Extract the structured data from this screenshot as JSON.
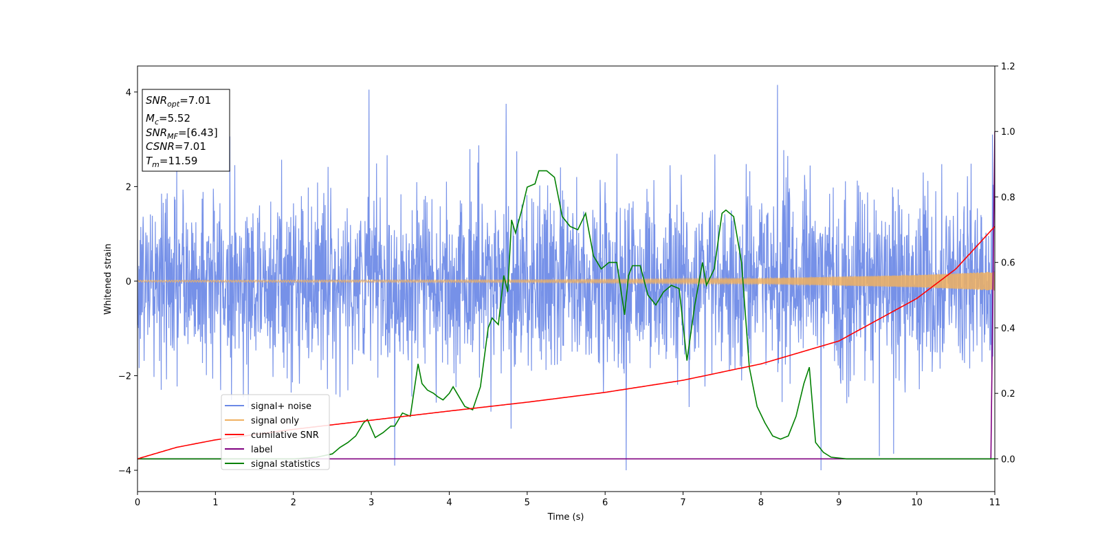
{
  "chart_data": {
    "type": "line",
    "xlabel": "Time (s)",
    "ylabel": "Whitened strain",
    "xlim": [
      0,
      11
    ],
    "ylim_left": [
      -4.45,
      4.55
    ],
    "ylim_right": [
      -0.1,
      1.2
    ],
    "x_ticks": [
      "0",
      "1",
      "2",
      "3",
      "4",
      "5",
      "6",
      "7",
      "8",
      "9",
      "10",
      "11"
    ],
    "y_left_ticks": [
      "−4",
      "−2",
      "0",
      "2",
      "4"
    ],
    "y_left_tick_values": [
      -4,
      -2,
      0,
      2,
      4
    ],
    "y_right_ticks": [
      "0.0",
      "0.2",
      "0.4",
      "0.6",
      "0.8",
      "1.0",
      "1.2"
    ],
    "y_right_tick_values": [
      0.0,
      0.2,
      0.4,
      0.6,
      0.8,
      1.0,
      1.2
    ],
    "grid": false,
    "legend_position": "lower-left",
    "series": [
      {
        "name": "signal+ noise",
        "axis": "left",
        "color": "#6a88e6",
        "noise_std": 0.95,
        "peaks_x": [
          2.97,
          3.3,
          4.73,
          6.27,
          8.21,
          8.77,
          9.52,
          9.7,
          10.97
        ],
        "peaks_y": [
          4.05,
          -3.9,
          3.75,
          -4.0,
          4.15,
          -4.0,
          -3.7,
          -3.65,
          3.1
        ]
      },
      {
        "name": "signal only",
        "axis": "left",
        "color": "#f0b060",
        "amplitude_x": [
          0,
          5,
          8,
          10,
          11
        ],
        "amplitude_y": [
          0.02,
          0.03,
          0.06,
          0.13,
          0.2
        ]
      },
      {
        "name": "cumilative SNR",
        "axis": "right",
        "color": "#ff0000",
        "x": [
          0,
          0.5,
          1,
          2,
          3,
          4,
          5,
          6,
          7,
          8,
          9,
          10,
          10.5,
          11
        ],
        "y": [
          0.0,
          0.035,
          0.058,
          0.09,
          0.118,
          0.146,
          0.173,
          0.203,
          0.24,
          0.29,
          0.36,
          0.49,
          0.58,
          0.71
        ]
      },
      {
        "name": "label",
        "axis": "right",
        "color": "#800080",
        "x": [
          0,
          10.95,
          11.0
        ],
        "y": [
          0.0,
          0.0,
          1.0
        ]
      },
      {
        "name": "signal statistics",
        "axis": "right",
        "color": "#008000",
        "x": [
          0,
          0.5,
          1,
          1.5,
          2,
          2.3,
          2.5,
          2.6,
          2.7,
          2.8,
          2.9,
          2.95,
          3.05,
          3.15,
          3.25,
          3.3,
          3.4,
          3.5,
          3.6,
          3.65,
          3.72,
          3.8,
          3.85,
          3.92,
          4.0,
          4.05,
          4.1,
          4.2,
          4.3,
          4.4,
          4.5,
          4.55,
          4.63,
          4.7,
          4.75,
          4.8,
          4.85,
          4.93,
          5.0,
          5.1,
          5.15,
          5.25,
          5.35,
          5.45,
          5.55,
          5.65,
          5.75,
          5.85,
          5.95,
          6.05,
          6.15,
          6.25,
          6.3,
          6.35,
          6.45,
          6.55,
          6.65,
          6.75,
          6.85,
          6.95,
          7.05,
          7.15,
          7.25,
          7.3,
          7.4,
          7.5,
          7.55,
          7.65,
          7.75,
          7.85,
          7.95,
          8.05,
          8.15,
          8.25,
          8.35,
          8.45,
          8.55,
          8.62,
          8.7,
          8.8,
          8.9,
          9.1,
          9.5,
          10,
          11
        ],
        "y": [
          0.0,
          0.0,
          0.0,
          0.0,
          0.0,
          0.005,
          0.015,
          0.035,
          0.05,
          0.07,
          0.11,
          0.12,
          0.065,
          0.08,
          0.1,
          0.1,
          0.14,
          0.13,
          0.29,
          0.23,
          0.21,
          0.2,
          0.19,
          0.18,
          0.2,
          0.22,
          0.2,
          0.16,
          0.15,
          0.22,
          0.4,
          0.43,
          0.41,
          0.56,
          0.51,
          0.73,
          0.69,
          0.76,
          0.83,
          0.84,
          0.88,
          0.88,
          0.86,
          0.74,
          0.71,
          0.7,
          0.75,
          0.62,
          0.58,
          0.6,
          0.6,
          0.44,
          0.56,
          0.59,
          0.59,
          0.5,
          0.47,
          0.51,
          0.53,
          0.52,
          0.3,
          0.47,
          0.6,
          0.53,
          0.58,
          0.75,
          0.76,
          0.74,
          0.6,
          0.28,
          0.16,
          0.11,
          0.07,
          0.06,
          0.07,
          0.13,
          0.23,
          0.28,
          0.05,
          0.02,
          0.005,
          0.0,
          0.0,
          0.0,
          0.0
        ]
      }
    ],
    "info_box": {
      "snr_opt": {
        "base": "SNR",
        "sub": "opt",
        "value": "=7.01"
      },
      "mc": {
        "base": "M",
        "sub": "c",
        "value": "=5.52"
      },
      "snr_mf": {
        "base": "SNR",
        "sub": "MF",
        "value": "=[6.43]"
      },
      "csnr": {
        "base": "CSNR",
        "value": "=7.01"
      },
      "tm": {
        "base": "T",
        "sub": "m",
        "value": "=11.59"
      }
    }
  }
}
